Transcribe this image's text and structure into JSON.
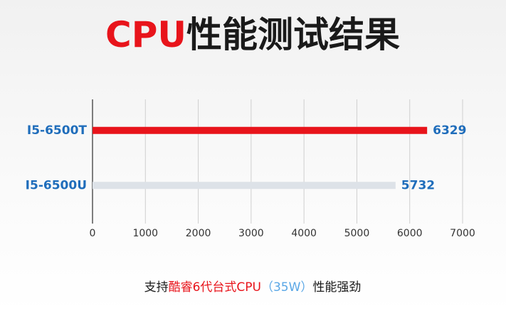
{
  "chart_data": {
    "type": "bar",
    "orientation": "horizontal",
    "title": [
      {
        "text": "CPU",
        "color": "#e8141b"
      },
      {
        "text": "性能测试结果",
        "color": "#1a1a1a"
      }
    ],
    "categories": [
      "I5-6500T",
      "I5-6500U"
    ],
    "values": [
      6329,
      5732
    ],
    "colors": [
      "#e8141b",
      "#dde2e8"
    ],
    "label_color": "#1f6dbb",
    "xlim": [
      0,
      7000
    ],
    "xticks": [
      0,
      1000,
      2000,
      3000,
      4000,
      5000,
      6000,
      7000
    ],
    "grid": true,
    "footnote": [
      {
        "text": "支持",
        "color": "#1a1a1a"
      },
      {
        "text": "酷睿6代台式CPU",
        "color": "#e8141b"
      },
      {
        "text": "（35W）",
        "color": "#5aa7e6"
      },
      {
        "text": "性能强劲",
        "color": "#1a1a1a"
      }
    ]
  }
}
